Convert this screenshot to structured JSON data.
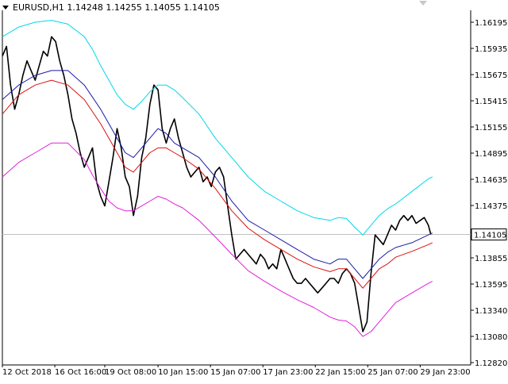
{
  "header": {
    "symbol": "EURUSD,H1",
    "open": "1.14248",
    "high": "1.14255",
    "low": "1.14055",
    "close": "1.14105"
  },
  "chart_data": {
    "type": "line",
    "title": "EURUSD,H1",
    "ylim": [
      1.1278,
      1.163
    ],
    "y_ticks": [
      "1.16195",
      "1.15935",
      "1.15675",
      "1.15415",
      "1.15155",
      "1.14895",
      "1.14635",
      "1.14375",
      "1.14105",
      "1.13855",
      "1.13595",
      "1.13340",
      "1.13080",
      "1.12820"
    ],
    "x_ticks": [
      "12 Oct 2018",
      "16 Oct 16:00",
      "19 Oct 08:00",
      "10 Jan 15:00",
      "15 Jan 07:00",
      "17 Jan 23:00",
      "22 Jan 15:00",
      "25 Jan 07:00",
      "29 Jan 23:00"
    ],
    "x_tick_positions": [
      0,
      6.4,
      12.5,
      19.0,
      25.4,
      31.8,
      38.2,
      44.6,
      51.0
    ],
    "x_range": [
      0,
      53
    ],
    "current_price": 1.14105,
    "current_price_label": "1.14105",
    "grid": false,
    "series": [
      {
        "color": "#000000",
        "x": [
          0,
          0.5,
          1,
          1.5,
          2,
          2.5,
          3,
          3.5,
          4,
          4.5,
          5,
          5.5,
          6,
          6.5,
          7,
          7.5,
          8,
          8.5,
          9,
          9.5,
          10,
          10.5,
          11,
          11.5,
          12,
          12.5,
          13,
          13.5,
          14,
          14.5,
          15,
          15.5,
          16,
          16.5,
          17,
          17.5,
          18,
          18.5,
          19,
          19.5,
          20,
          20.5,
          21,
          21.5,
          22,
          22.5,
          23,
          23.5,
          24,
          24.5,
          25,
          25.5,
          26,
          26.5,
          27,
          27.5,
          28,
          28.5,
          29,
          29.5,
          30,
          30.5,
          31,
          31.5,
          32,
          32.5,
          33,
          33.5,
          34,
          34.5,
          35,
          35.5,
          36,
          36.5,
          37,
          37.5,
          38,
          38.5,
          39,
          39.5,
          40,
          40.5,
          41,
          41.5,
          42,
          42.5,
          43,
          43.5,
          44,
          44.5,
          45,
          45.5,
          46,
          46.5,
          47,
          47.5,
          48,
          48.5,
          49,
          49.5,
          50,
          50.5,
          51,
          51.5,
          52,
          52.3
        ],
        "values": [
          1.1595,
          1.1605,
          1.1565,
          1.154,
          1.1555,
          1.1575,
          1.159,
          1.158,
          1.157,
          1.1585,
          1.16,
          1.1595,
          1.1615,
          1.161,
          1.159,
          1.1575,
          1.1555,
          1.153,
          1.1515,
          1.1495,
          1.148,
          1.149,
          1.15,
          1.1465,
          1.145,
          1.144,
          1.1465,
          1.149,
          1.152,
          1.15,
          1.147,
          1.146,
          1.143,
          1.145,
          1.149,
          1.151,
          1.1545,
          1.1565,
          1.156,
          1.152,
          1.1505,
          1.152,
          1.153,
          1.151,
          1.1495,
          1.148,
          1.147,
          1.1475,
          1.148,
          1.1465,
          1.147,
          1.146,
          1.1475,
          1.148,
          1.147,
          1.144,
          1.141,
          1.1385,
          1.139,
          1.1395,
          1.139,
          1.1385,
          1.138,
          1.139,
          1.1385,
          1.1375,
          1.138,
          1.1375,
          1.1395,
          1.1385,
          1.1375,
          1.1365,
          1.136,
          1.136,
          1.1365,
          1.136,
          1.1355,
          1.135,
          1.1355,
          1.136,
          1.1365,
          1.1365,
          1.136,
          1.137,
          1.1375,
          1.137,
          1.136,
          1.1335,
          1.131,
          1.132,
          1.137,
          1.141,
          1.1405,
          1.14,
          1.141,
          1.142,
          1.1415,
          1.1425,
          1.143,
          1.1425,
          1.143,
          1.1422,
          1.1425,
          1.1428,
          1.142,
          1.14105
        ]
      },
      {
        "color": "#1a1aa8",
        "x": [
          0,
          2,
          4,
          6,
          8,
          10,
          12,
          13,
          14,
          15,
          16,
          17,
          18,
          19,
          20,
          21,
          22,
          24,
          26,
          28,
          30,
          32,
          34,
          36,
          38,
          40,
          41,
          42,
          43,
          44,
          45,
          46,
          47,
          48,
          50,
          52,
          52.5
        ],
        "values": [
          1.155,
          1.1565,
          1.1575,
          1.158,
          1.158,
          1.1565,
          1.154,
          1.1525,
          1.151,
          1.1495,
          1.149,
          1.15,
          1.151,
          1.152,
          1.1515,
          1.1505,
          1.15,
          1.149,
          1.147,
          1.1445,
          1.1425,
          1.1415,
          1.1405,
          1.1395,
          1.1385,
          1.138,
          1.1385,
          1.1385,
          1.1375,
          1.1365,
          1.1375,
          1.1385,
          1.1392,
          1.1397,
          1.1402,
          1.141,
          1.1412
        ]
      },
      {
        "color": "#dd1111",
        "x": [
          0,
          2,
          4,
          6,
          8,
          10,
          12,
          13,
          14,
          15,
          16,
          17,
          18,
          19,
          20,
          21,
          22,
          24,
          26,
          28,
          30,
          32,
          34,
          36,
          38,
          40,
          41,
          42,
          43,
          44,
          45,
          46,
          47,
          48,
          50,
          52,
          52.5
        ],
        "values": [
          1.1535,
          1.1555,
          1.1565,
          1.157,
          1.1565,
          1.155,
          1.1525,
          1.151,
          1.1495,
          1.148,
          1.1475,
          1.1485,
          1.1495,
          1.15,
          1.15,
          1.1495,
          1.149,
          1.1478,
          1.1458,
          1.1435,
          1.1417,
          1.1405,
          1.1395,
          1.1385,
          1.1377,
          1.1372,
          1.1375,
          1.1375,
          1.1365,
          1.1355,
          1.1365,
          1.1375,
          1.138,
          1.1387,
          1.1393,
          1.14,
          1.1402
        ]
      },
      {
        "color": "#00d8e8",
        "x": [
          0,
          2,
          4,
          6,
          8,
          10,
          11,
          12,
          13,
          14,
          15,
          16,
          17,
          18,
          19,
          20,
          21,
          22,
          24,
          26,
          28,
          30,
          32,
          34,
          36,
          38,
          40,
          41,
          42,
          43,
          44,
          45,
          46,
          47,
          48,
          50,
          52,
          52.5
        ],
        "values": [
          1.1615,
          1.1625,
          1.163,
          1.1632,
          1.1628,
          1.1615,
          1.1602,
          1.1585,
          1.157,
          1.1555,
          1.1545,
          1.154,
          1.1548,
          1.1558,
          1.1565,
          1.1565,
          1.156,
          1.1552,
          1.1535,
          1.151,
          1.149,
          1.147,
          1.1455,
          1.1445,
          1.1435,
          1.1428,
          1.1425,
          1.1428,
          1.1427,
          1.1418,
          1.141,
          1.142,
          1.143,
          1.1437,
          1.1442,
          1.1455,
          1.1468,
          1.147
        ]
      },
      {
        "color": "#e020d8",
        "x": [
          0,
          2,
          4,
          6,
          8,
          10,
          11,
          12,
          13,
          14,
          15,
          16,
          17,
          18,
          19,
          20,
          21,
          22,
          24,
          26,
          28,
          30,
          32,
          34,
          36,
          38,
          40,
          41,
          42,
          43,
          44,
          45,
          46,
          47,
          48,
          50,
          52,
          52.5
        ],
        "values": [
          1.147,
          1.1485,
          1.1495,
          1.1505,
          1.1505,
          1.1488,
          1.1472,
          1.1458,
          1.1445,
          1.1438,
          1.1435,
          1.1435,
          1.144,
          1.1445,
          1.145,
          1.1447,
          1.1442,
          1.1438,
          1.1425,
          1.1408,
          1.139,
          1.1373,
          1.1362,
          1.1352,
          1.1343,
          1.1335,
          1.1325,
          1.1322,
          1.1321,
          1.1315,
          1.1305,
          1.131,
          1.132,
          1.133,
          1.134,
          1.135,
          1.136,
          1.1362
        ]
      }
    ]
  }
}
